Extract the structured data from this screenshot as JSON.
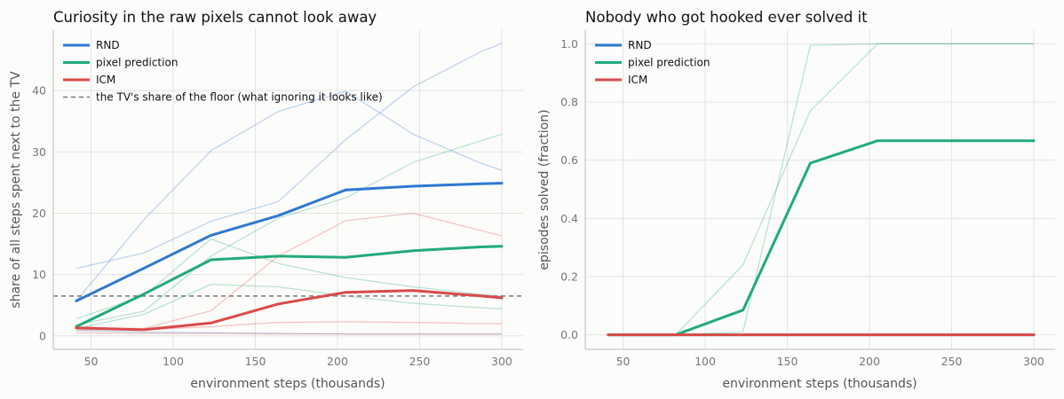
{
  "chart_data": [
    {
      "type": "line",
      "title": "Curiosity in the raw pixels cannot look away",
      "xlabel": "environment steps (thousands)",
      "ylabel": "share of all steps spent next to the TV",
      "xlim": [
        27,
        313
      ],
      "ylim": [
        -2.2,
        50
      ],
      "xticks": [
        50,
        100,
        150,
        200,
        250,
        300
      ],
      "yticks": [
        0,
        10,
        20,
        30,
        40
      ],
      "grid": true,
      "legend_position": "top-left",
      "colors": {
        "RND": "#2e78d2",
        "pixel prediction": "#20ab7a",
        "ICM": "#d94a4a"
      },
      "reference_line": {
        "label": "the TV's share of the floor (what ignoring it looks like)",
        "y": 6.5,
        "color": "#777777"
      },
      "x": [
        41,
        82,
        123,
        164,
        205,
        246,
        287,
        300
      ],
      "series": [
        {
          "name": "RND",
          "values": [
            5.7,
            11.0,
            16.4,
            19.6,
            23.8,
            24.4,
            24.8,
            24.9
          ]
        },
        {
          "name": "pixel prediction",
          "values": [
            1.5,
            6.8,
            12.4,
            13.0,
            12.8,
            13.9,
            14.5,
            14.6
          ]
        },
        {
          "name": "ICM",
          "values": [
            1.3,
            1.0,
            2.1,
            5.2,
            7.1,
            7.4,
            6.5,
            6.2
          ]
        }
      ],
      "individual_runs": [
        {
          "series": "RND",
          "values": [
            11.0,
            13.5,
            18.7,
            21.9,
            32.0,
            40.6,
            46.3,
            47.7
          ]
        },
        {
          "series": "RND",
          "values": [
            5.7,
            18.9,
            30.2,
            36.6,
            39.9,
            32.9,
            28.2,
            27.0
          ]
        },
        {
          "series": "RND",
          "values": [
            0.9,
            0.6,
            0.5,
            0.4,
            0.3,
            0.3,
            0.3,
            0.3
          ]
        },
        {
          "series": "pixel prediction",
          "values": [
            2.8,
            6.5,
            15.8,
            11.8,
            9.5,
            8.0,
            6.8,
            6.5
          ]
        },
        {
          "series": "pixel prediction",
          "values": [
            1.8,
            4.0,
            13.0,
            19.2,
            22.5,
            28.3,
            31.8,
            32.9
          ]
        },
        {
          "series": "pixel prediction",
          "values": [
            1.2,
            3.5,
            8.4,
            8.0,
            6.5,
            5.3,
            4.6,
            4.4
          ]
        },
        {
          "series": "ICM",
          "values": [
            1.4,
            1.2,
            4.1,
            13.0,
            18.8,
            20.0,
            17.2,
            16.3
          ]
        },
        {
          "series": "ICM",
          "values": [
            1.0,
            1.0,
            1.5,
            2.2,
            2.3,
            2.2,
            2.0,
            2.0
          ]
        },
        {
          "series": "ICM",
          "values": [
            0.5,
            0.4,
            0.4,
            0.3,
            0.3,
            0.3,
            0.3,
            0.3
          ]
        }
      ]
    },
    {
      "type": "line",
      "title": "Nobody who got hooked ever solved it",
      "xlabel": "environment steps (thousands)",
      "ylabel": "episodes solved (fraction)",
      "xlim": [
        27,
        313
      ],
      "ylim": [
        -0.05,
        1.05
      ],
      "xticks": [
        50,
        100,
        150,
        200,
        250,
        300
      ],
      "yticks": [
        0.0,
        0.2,
        0.4,
        0.6,
        0.8,
        1.0
      ],
      "grid": true,
      "legend_position": "top-left",
      "colors": {
        "RND": "#2e78d2",
        "pixel prediction": "#20ab7a",
        "ICM": "#d94a4a"
      },
      "x": [
        41,
        82,
        123,
        164,
        205,
        246,
        287,
        300
      ],
      "series": [
        {
          "name": "RND",
          "values": [
            0,
            0,
            0,
            0,
            0,
            0,
            0,
            0
          ]
        },
        {
          "name": "pixel prediction",
          "values": [
            0,
            0,
            0.085,
            0.59,
            0.667,
            0.667,
            0.667,
            0.667
          ]
        },
        {
          "name": "ICM",
          "values": [
            0,
            0,
            0,
            0,
            0,
            0,
            0,
            0
          ]
        }
      ],
      "individual_runs": [
        {
          "series": "pixel prediction",
          "values": [
            0,
            0,
            0.24,
            0.77,
            1.0,
            1.0,
            1.0,
            1.0
          ]
        },
        {
          "series": "pixel prediction",
          "values": [
            0,
            0,
            0.01,
            0.995,
            1.0,
            1.0,
            1.0,
            1.0
          ]
        }
      ]
    }
  ]
}
